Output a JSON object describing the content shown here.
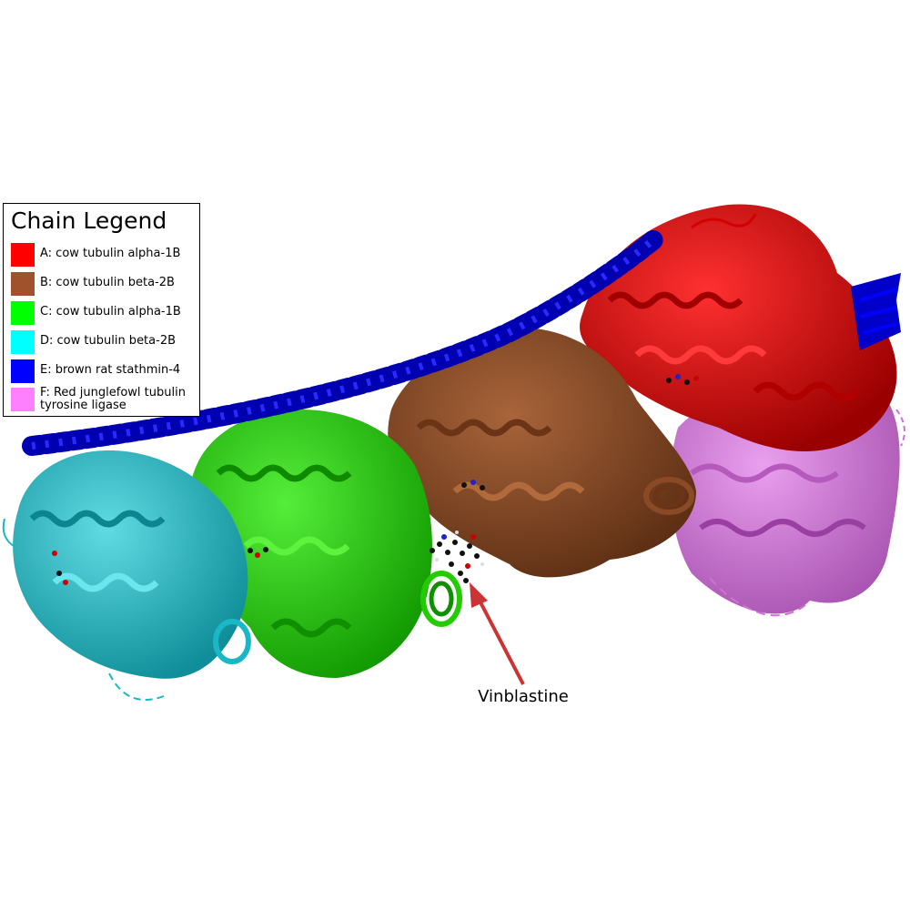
{
  "legend": {
    "title": "Chain Legend",
    "items": [
      {
        "label": "A: cow tubulin alpha-1B",
        "color": "#ff0000"
      },
      {
        "label": "B: cow tubulin beta-2B",
        "color": "#a0522d"
      },
      {
        "label": "C: cow tubulin alpha-1B",
        "color": "#00ff00"
      },
      {
        "label": "D: cow tubulin beta-2B",
        "color": "#00ffff"
      },
      {
        "label": "E: brown rat stathmin-4",
        "color": "#0000ff"
      },
      {
        "label": "F: Red junglefowl tubulin tyrosine ligase",
        "color": "#ff80ff"
      }
    ]
  },
  "annotation": {
    "label": "Vinblastine",
    "arrow_color": "#cc3333"
  },
  "chain_colors": {
    "A": "#d40000",
    "B": "#8b4a26",
    "C": "#22cc00",
    "D": "#1ab8c4",
    "E": "#0000c8",
    "F": "#d070d8"
  }
}
